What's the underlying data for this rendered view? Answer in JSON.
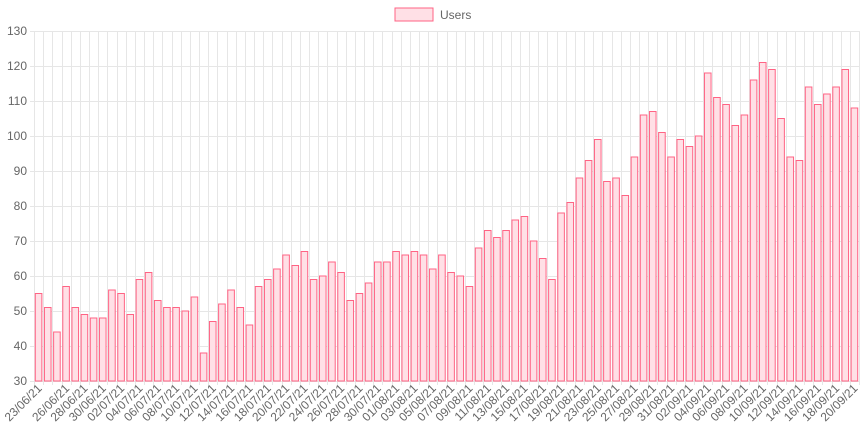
{
  "chart_data": {
    "type": "bar",
    "series": [
      {
        "name": "Users",
        "values": [
          55,
          51,
          44,
          57,
          51,
          49,
          48,
          48,
          56,
          55,
          49,
          59,
          61,
          53,
          51,
          51,
          50,
          54,
          38,
          47,
          52,
          56,
          51,
          46,
          57,
          59,
          62,
          66,
          63,
          67,
          59,
          60,
          64,
          61,
          53,
          55,
          58,
          64,
          64,
          67,
          66,
          67,
          66,
          62,
          66,
          61,
          60,
          57,
          68,
          73,
          71,
          73,
          76,
          77,
          70,
          65,
          59,
          78,
          81,
          88,
          93,
          99,
          87,
          88,
          83,
          94,
          106,
          107,
          101,
          94,
          99,
          97,
          100,
          118,
          111,
          109,
          103,
          106,
          116,
          121,
          119,
          105,
          94,
          93,
          114,
          109,
          112,
          114,
          119,
          108
        ]
      }
    ],
    "x_tick_labels": [
      "23/06/21",
      "26/06/21",
      "28/06/21",
      "30/06/21",
      "02/07/21",
      "04/07/21",
      "06/07/21",
      "08/07/21",
      "10/07/21",
      "12/07/21",
      "14/07/21",
      "16/07/21",
      "18/07/21",
      "20/07/21",
      "22/07/21",
      "24/07/21",
      "26/07/21",
      "28/07/21",
      "30/07/21",
      "01/08/21",
      "03/08/21",
      "05/08/21",
      "07/08/21",
      "09/08/21",
      "11/08/21",
      "13/08/21",
      "15/08/21",
      "17/08/21",
      "19/08/21",
      "21/08/21",
      "23/08/21",
      "25/08/21",
      "27/08/21",
      "29/08/21",
      "31/08/21",
      "02/09/21",
      "04/09/21",
      "06/09/21",
      "08/09/21",
      "10/09/21",
      "12/09/21",
      "14/09/21",
      "16/09/21",
      "18/09/21",
      "20/09/21"
    ],
    "ylim": [
      30,
      130
    ],
    "y_ticks": [
      30,
      40,
      50,
      60,
      70,
      80,
      90,
      100,
      110,
      120,
      130
    ],
    "grid": true,
    "legend_position": "top-center",
    "colors": {
      "bar_fill": "#ffe0e6",
      "bar_stroke": "#ff6384",
      "grid": "#e6e6e6",
      "text": "#666666"
    }
  }
}
